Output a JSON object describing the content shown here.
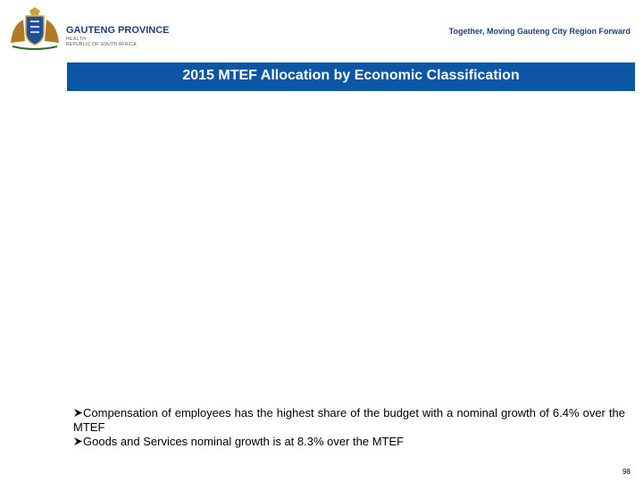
{
  "header": {
    "organization": "GAUTENG PROVINCE",
    "department": "HEALTH",
    "country": "REPUBLIC OF SOUTH AFRICA",
    "slogan": "Together, Moving Gauteng City Region Forward"
  },
  "slide": {
    "title": "2015 MTEF Allocation by Economic Classification",
    "bullets": [
      "Compensation of employees has the highest share of the budget with a nominal growth of 6.4% over the MTEF",
      "Goods and Services nominal growth is at 8.3% over the MTEF"
    ],
    "page_number": "98"
  }
}
